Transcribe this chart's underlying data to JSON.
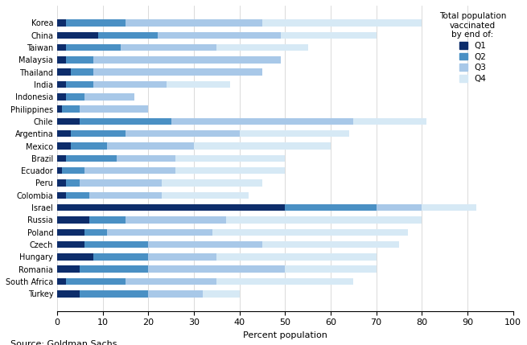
{
  "countries": [
    "Turkey",
    "South Africa",
    "Romania",
    "Hungary",
    "Czech",
    "Poland",
    "Russia",
    "Israel",
    "Colombia",
    "Peru",
    "Ecuador",
    "Brazil",
    "Mexico",
    "Argentina",
    "Chile",
    "Philippines",
    "Indonesia",
    "India",
    "Thailand",
    "Malaysia",
    "Taiwan",
    "China",
    "Korea"
  ],
  "q1": [
    5,
    2,
    5,
    8,
    6,
    6,
    7,
    50,
    2,
    2,
    1,
    2,
    3,
    3,
    5,
    1,
    2,
    2,
    3,
    2,
    2,
    9,
    2
  ],
  "q2": [
    15,
    13,
    15,
    12,
    14,
    5,
    8,
    20,
    5,
    3,
    5,
    11,
    8,
    12,
    20,
    4,
    4,
    6,
    5,
    6,
    12,
    13,
    13
  ],
  "q3": [
    12,
    20,
    30,
    15,
    25,
    23,
    22,
    10,
    16,
    18,
    20,
    13,
    19,
    25,
    40,
    15,
    11,
    16,
    37,
    41,
    21,
    27,
    30
  ],
  "q4": [
    8,
    30,
    20,
    35,
    30,
    43,
    43,
    12,
    19,
    22,
    24,
    24,
    30,
    24,
    16,
    0,
    0,
    14,
    0,
    0,
    20,
    21,
    35
  ],
  "colors": {
    "q1": "#0d2d6b",
    "q2": "#4a90c4",
    "q3": "#a8c8e8",
    "q4": "#d6e9f5"
  },
  "legend_title": "Total population\nvaccinated\nby end of:",
  "xlabel": "Percent population",
  "source": "Source: Goldman Sachs",
  "xlim": [
    0,
    100
  ],
  "figsize": [
    6.55,
    4.29
  ],
  "dpi": 100,
  "background_color": "#ffffff"
}
